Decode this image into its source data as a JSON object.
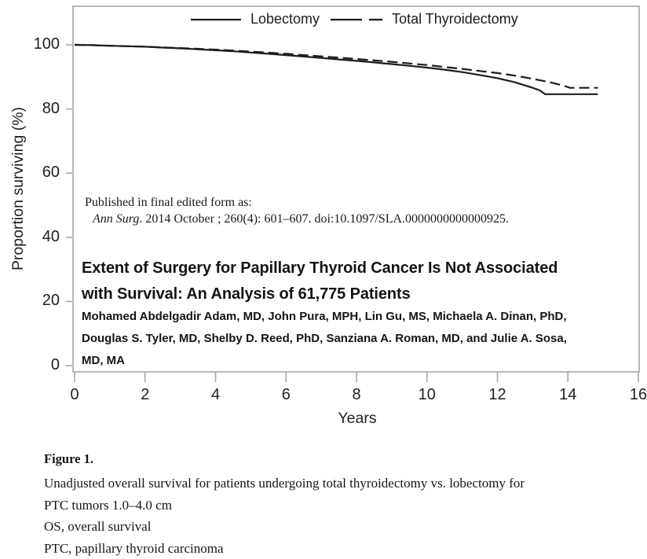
{
  "colors": {
    "curve": "#1c1c1c",
    "frame": "#a6a6a6",
    "text": "#1a1a1a"
  },
  "chart_data": {
    "type": "line",
    "subtype": "kaplan-meier-survival",
    "title": "",
    "xlabel": "Years",
    "ylabel": "Proportion surviving (%)",
    "xlim": [
      0,
      16
    ],
    "ylim": [
      0,
      100
    ],
    "xticks": [
      0,
      2,
      4,
      6,
      8,
      10,
      12,
      14,
      16
    ],
    "yticks": [
      0,
      20,
      40,
      60,
      80,
      100
    ],
    "grid": false,
    "legend_position": "top-center-inside",
    "series": [
      {
        "name": "Lobectomy",
        "line_style": "solid",
        "color": "#1c1c1c",
        "points": [
          [
            0,
            100
          ],
          [
            0.5,
            99.9
          ],
          [
            1,
            99.7
          ],
          [
            1.5,
            99.55
          ],
          [
            2,
            99.4
          ],
          [
            2.5,
            99.15
          ],
          [
            3,
            98.9
          ],
          [
            3.5,
            98.6
          ],
          [
            4,
            98.3
          ],
          [
            4.5,
            98.0
          ],
          [
            5,
            97.6
          ],
          [
            5.5,
            97.2
          ],
          [
            6,
            96.8
          ],
          [
            6.5,
            96.35
          ],
          [
            7,
            95.9
          ],
          [
            7.5,
            95.45
          ],
          [
            8,
            95.0
          ],
          [
            8.5,
            94.5
          ],
          [
            9,
            94.0
          ],
          [
            9.5,
            93.45
          ],
          [
            10,
            92.9
          ],
          [
            10.5,
            92.25
          ],
          [
            11,
            91.5
          ],
          [
            11.5,
            90.6
          ],
          [
            12,
            89.6
          ],
          [
            12.5,
            88.3
          ],
          [
            13,
            86.6
          ],
          [
            13.2,
            85.8
          ],
          [
            13.35,
            84.6
          ],
          [
            14.85,
            84.6
          ]
        ]
      },
      {
        "name": "Total Thyroidectomy",
        "line_style": "dashed",
        "color": "#1c1c1c",
        "points": [
          [
            0,
            100
          ],
          [
            0.5,
            99.9
          ],
          [
            1,
            99.7
          ],
          [
            1.5,
            99.55
          ],
          [
            2,
            99.4
          ],
          [
            2.5,
            99.2
          ],
          [
            3,
            99.0
          ],
          [
            3.5,
            98.75
          ],
          [
            4,
            98.5
          ],
          [
            4.5,
            98.2
          ],
          [
            5,
            97.9
          ],
          [
            5.5,
            97.55
          ],
          [
            6,
            97.2
          ],
          [
            6.5,
            96.8
          ],
          [
            7,
            96.4
          ],
          [
            7.5,
            96.0
          ],
          [
            8,
            95.6
          ],
          [
            8.5,
            95.15
          ],
          [
            9,
            94.7
          ],
          [
            9.5,
            94.2
          ],
          [
            10,
            93.7
          ],
          [
            10.5,
            93.1
          ],
          [
            11,
            92.5
          ],
          [
            11.5,
            91.85
          ],
          [
            12,
            91.2
          ],
          [
            12.5,
            90.4
          ],
          [
            13,
            89.4
          ],
          [
            13.5,
            88.3
          ],
          [
            13.9,
            87.2
          ],
          [
            14.05,
            86.6
          ],
          [
            14.85,
            86.6
          ]
        ]
      }
    ]
  },
  "overlay": {
    "published_line": "Published in final edited form as:",
    "citation_journal": "Ann Surg",
    "citation_rest": ". 2014 October ; 260(4): 601–607. doi:10.1097/SLA.0000000000000925.",
    "title_lines": [
      "Extent of Surgery for Papillary Thyroid Cancer Is Not Associated",
      "with Survival: An Analysis of 61,775 Patients"
    ],
    "author_lines": [
      "Mohamed Abdelgadir Adam, MD, John Pura, MPH, Lin Gu, MS, Michaela A. Dinan, PhD,",
      "Douglas S. Tyler, MD, Shelby D. Reed, PhD, Sanziana A. Roman, MD, and Julie A. Sosa,",
      "MD, MA"
    ]
  },
  "caption": {
    "label": "Figure 1.",
    "lines": [
      "Unadjusted overall survival for patients undergoing total thyroidectomy vs. lobectomy for",
      "PTC tumors 1.0–4.0 cm",
      "OS, overall survival",
      "PTC, papillary thyroid carcinoma"
    ]
  }
}
